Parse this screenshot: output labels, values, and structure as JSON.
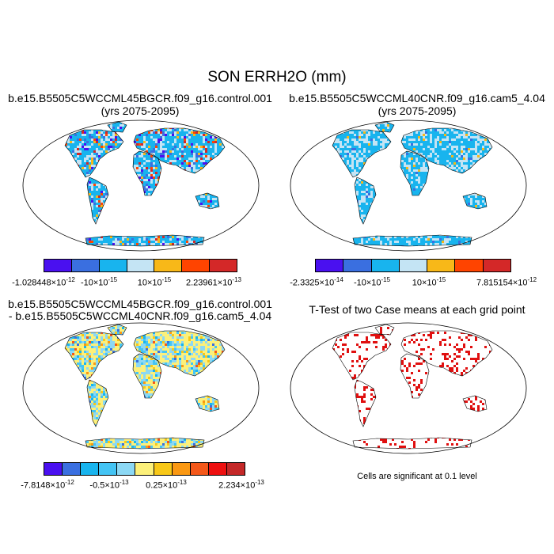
{
  "title": "SON ERRH2O (mm)",
  "panels": [
    {
      "id": "case1",
      "title_line1": "b.e15.B5505C5WCCML45BGCR.f09_g16.control.001",
      "title_line2": "(yrs 2075-2095)",
      "legend": {
        "colors": [
          "#4a10f0",
          "#3a6fe0",
          "#18b4ee",
          "#c4e4f4",
          "#f8b818",
          "#ff4400",
          "#d42828"
        ],
        "labels": [
          {
            "base": "-1.028448",
            "exp": "-12"
          },
          {
            "base": "-10",
            "exp": "-15"
          },
          {
            "base": "10",
            "exp": "-15"
          },
          {
            "base": "2.23961",
            "exp": "-13"
          }
        ]
      }
    },
    {
      "id": "case2",
      "title_line1": "b.e15.B5505C5WCCML40CNR.f09_g16.cam5_4.04",
      "title_line2": "(yrs 2075-2095)",
      "legend": {
        "colors": [
          "#4a10f0",
          "#3a6fe0",
          "#18b4ee",
          "#c4e4f4",
          "#f8b818",
          "#ff4400",
          "#d42828"
        ],
        "labels": [
          {
            "base": "-2.3325",
            "exp": "-14"
          },
          {
            "base": "-10",
            "exp": "-15"
          },
          {
            "base": "10",
            "exp": "-15"
          },
          {
            "base": "7.815154",
            "exp": "-12"
          }
        ]
      }
    },
    {
      "id": "diff",
      "title_line1": "b.e15.B5505C5WCCML45BGCR.f09_g16.control.001",
      "title_line2": "- b.e15.B5505C5WCCML40CNR.f09_g16.cam5_4.04",
      "legend": {
        "colors": [
          "#4a10f0",
          "#3a6fe0",
          "#18b4ee",
          "#44c4f4",
          "#8cd8f4",
          "#fcf07a",
          "#f8c818",
          "#fa9812",
          "#f4581a",
          "#ee1010",
          "#c42828"
        ],
        "labels": [
          {
            "base": "-7.8148",
            "exp": "-12"
          },
          {
            "base": "-0.5",
            "exp": "-13"
          },
          {
            "base": "0.25",
            "exp": "-13"
          },
          {
            "base": "2.234",
            "exp": "-13"
          }
        ]
      }
    },
    {
      "id": "ttest",
      "title_line1": "T-Test of two Case means at each grid point",
      "note": "Cells are significant at 0.1 level"
    }
  ],
  "colors": {
    "land_case1": "#78c4ee",
    "land_case2": "#6cc4f0",
    "land_diff": "#d6e6a0",
    "significant": "#e01010",
    "coast": "#000000"
  }
}
